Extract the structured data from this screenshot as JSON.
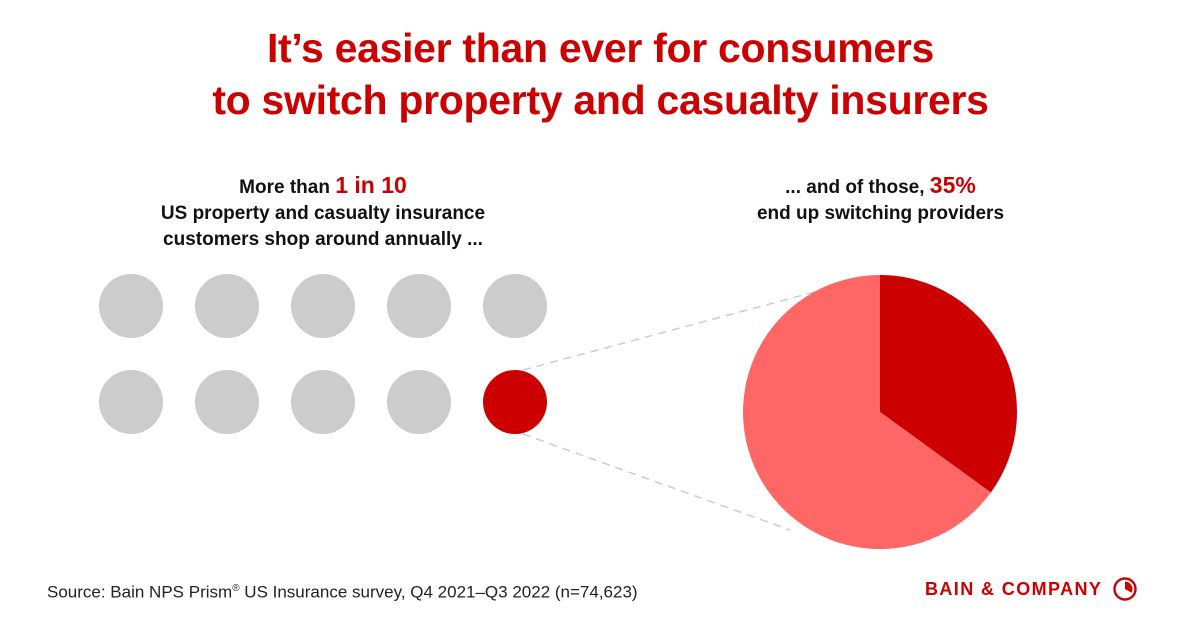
{
  "title": {
    "line1": "It’s easier than ever for consumers",
    "line2": "to switch property and casualty insurers"
  },
  "left_caption": {
    "prefix": "More than ",
    "highlight": "1 in 10",
    "line2": "US property and casualty insurance",
    "line3": "customers shop around annually ..."
  },
  "right_caption": {
    "prefix": "... and of those, ",
    "highlight": "35%",
    "line2": "end up switching providers"
  },
  "colors": {
    "accent": "#cc0000",
    "light_red": "#ff6666",
    "gray_dot": "#cccccc",
    "connector": "#cccccc"
  },
  "chart_data": [
    {
      "type": "pictogram",
      "total": 10,
      "highlighted": 1,
      "rows": 2,
      "columns": 5
    },
    {
      "type": "pie",
      "slices": [
        {
          "value": 35,
          "color": "#cc0000"
        },
        {
          "value": 65,
          "color": "#ff6666"
        }
      ]
    }
  ],
  "source": {
    "prefix": "Source: Bain NPS Prism",
    "registered": "®",
    "suffix": " US Insurance survey, Q4 2021–Q3 2022 (n=74,623)"
  },
  "brand": {
    "name": "BAIN & COMPANY",
    "mark_icon": "bain-logo-icon"
  }
}
